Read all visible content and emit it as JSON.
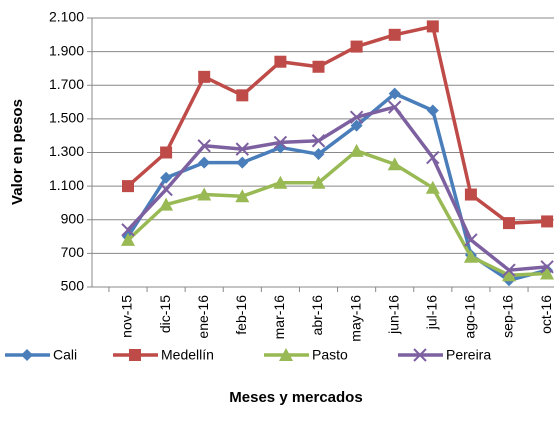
{
  "chart_data": {
    "type": "line",
    "y_label": "Valor en pesos",
    "x_label": "Meses y mercados",
    "categories": [
      "nov-15",
      "dic-15",
      "ene-16",
      "feb-16",
      "mar-16",
      "abr-16",
      "may-16",
      "jun-16",
      "jul-16",
      "ago-16",
      "sep-16",
      "oct-16"
    ],
    "series": [
      {
        "name": "Cali",
        "color": "#4a7ebb",
        "marker": "diamond",
        "values": [
          800,
          1150,
          1240,
          1240,
          1330,
          1290,
          1460,
          1650,
          1550,
          690,
          540,
          600
        ]
      },
      {
        "name": "Medellín",
        "color": "#be4b48",
        "marker": "square",
        "values": [
          1100,
          1300,
          1750,
          1640,
          1840,
          1810,
          1930,
          2000,
          2050,
          1050,
          880,
          890
        ]
      },
      {
        "name": "Pasto",
        "color": "#98b954",
        "marker": "triangle",
        "values": [
          780,
          990,
          1050,
          1040,
          1120,
          1120,
          1310,
          1230,
          1090,
          680,
          570,
          580
        ]
      },
      {
        "name": "Pereira",
        "color": "#7d60a0",
        "marker": "x",
        "values": [
          840,
          1080,
          1340,
          1320,
          1360,
          1370,
          1510,
          1570,
          1270,
          780,
          600,
          620
        ]
      }
    ],
    "ylim": [
      500,
      2100
    ],
    "yticks": [
      {
        "value": 500,
        "label": "500"
      },
      {
        "value": 700,
        "label": "700"
      },
      {
        "value": 900,
        "label": "900"
      },
      {
        "value": 1100,
        "label": "1.100"
      },
      {
        "value": 1300,
        "label": "1.300"
      },
      {
        "value": 1500,
        "label": "1.500"
      },
      {
        "value": 1700,
        "label": "1.700"
      },
      {
        "value": 1900,
        "label": "1.900"
      },
      {
        "value": 2100,
        "label": "2.100"
      }
    ],
    "grid": true,
    "legend": "bottom"
  }
}
